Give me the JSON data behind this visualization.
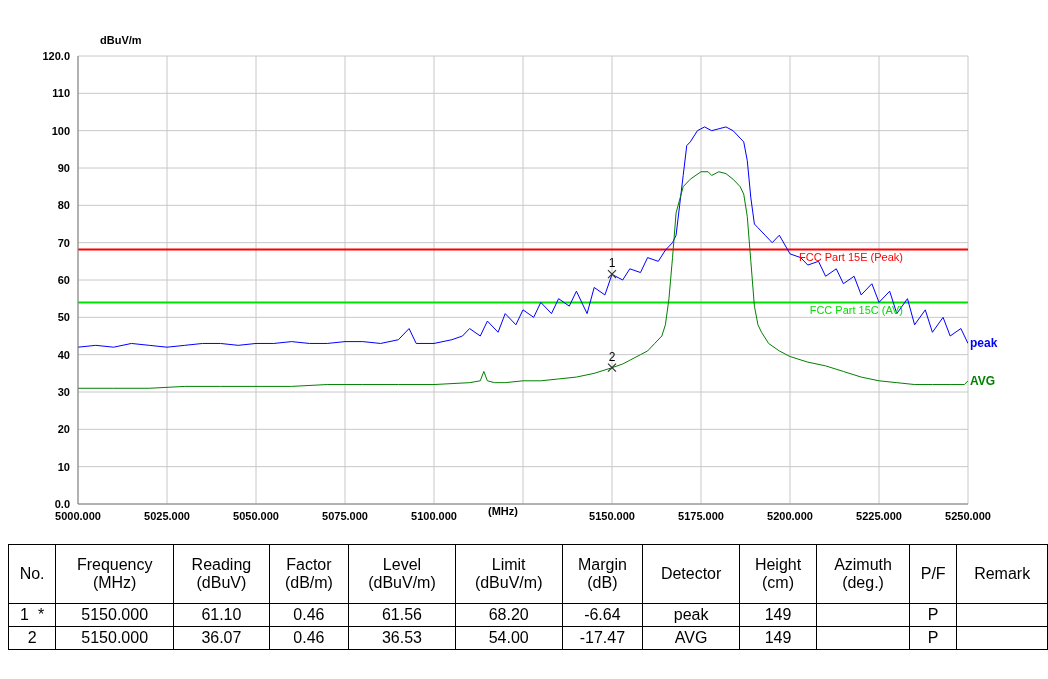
{
  "chart_data": [
    {
      "type": "line",
      "ylabel": "dBuV/m",
      "xlabel": "(MHz)",
      "xlim": [
        5000,
        5250
      ],
      "ylim": [
        0,
        120
      ],
      "xticks": [
        {
          "value": 5000,
          "label": "5000.000"
        },
        {
          "value": 5025,
          "label": "5025.000"
        },
        {
          "value": 5050,
          "label": "5050.000"
        },
        {
          "value": 5075,
          "label": "5075.000"
        },
        {
          "value": 5100,
          "label": "5100.000"
        },
        {
          "value": 5125,
          "label": null
        },
        {
          "value": 5150,
          "label": "5150.000"
        },
        {
          "value": 5175,
          "label": "5175.000"
        },
        {
          "value": 5200,
          "label": "5200.000"
        },
        {
          "value": 5225,
          "label": "5225.000"
        },
        {
          "value": 5250,
          "label": "5250.000"
        }
      ],
      "yticks": [
        {
          "value": 0,
          "label": "0.0"
        },
        10,
        20,
        30,
        40,
        50,
        60,
        70,
        80,
        90,
        100,
        110,
        {
          "value": 120,
          "label": "120.0"
        }
      ],
      "grid": true,
      "legend": false,
      "marker": "none",
      "line_style": "solid",
      "series": [
        {
          "name": "peak",
          "color": "#0000ff",
          "x": [
            5000,
            5005,
            5010,
            5015,
            5020,
            5025,
            5030,
            5035,
            5040,
            5045,
            5050,
            5055,
            5060,
            5065,
            5070,
            5075,
            5080,
            5085,
            5090,
            5093,
            5095,
            5100,
            5105,
            5108,
            5110,
            5113,
            5115,
            5118,
            5120,
            5123,
            5125,
            5128,
            5130,
            5133,
            5135,
            5138,
            5140,
            5143,
            5145,
            5148,
            5150,
            5153,
            5155,
            5158,
            5160,
            5163,
            5165,
            5167,
            5168,
            5169,
            5170,
            5171,
            5172,
            5174,
            5176,
            5178,
            5180,
            5182,
            5184,
            5186,
            5187,
            5188,
            5189,
            5190,
            5191,
            5193,
            5195,
            5197,
            5200,
            5203,
            5205,
            5208,
            5210,
            5213,
            5215,
            5218,
            5220,
            5223,
            5225,
            5228,
            5230,
            5233,
            5235,
            5238,
            5240,
            5243,
            5245,
            5248,
            5250
          ],
          "values": [
            42,
            42.5,
            42,
            43,
            42.5,
            42,
            42.5,
            43,
            43,
            42.5,
            43,
            43,
            43.5,
            43,
            43,
            43.5,
            43.5,
            43,
            44,
            47,
            43,
            43,
            44,
            45,
            47,
            45,
            49,
            46,
            51,
            48,
            52,
            50,
            54,
            51,
            55,
            53,
            57,
            51,
            58,
            56,
            61.5,
            60,
            63,
            62,
            66,
            65,
            68,
            70,
            72,
            80,
            88,
            96,
            97,
            100,
            101,
            100,
            100.5,
            101,
            100,
            98,
            97,
            92,
            82,
            75,
            74,
            72,
            70,
            72,
            67,
            66,
            64,
            65,
            61,
            63,
            59,
            61,
            56,
            59,
            54,
            57,
            51,
            55,
            48,
            52,
            46,
            50,
            45,
            47,
            43
          ]
        },
        {
          "name": "AVG",
          "color": "#008000",
          "x": [
            5000,
            5010,
            5020,
            5030,
            5040,
            5050,
            5060,
            5070,
            5080,
            5090,
            5100,
            5110,
            5113,
            5114,
            5115,
            5117,
            5120,
            5125,
            5130,
            5135,
            5140,
            5145,
            5150,
            5153,
            5155,
            5158,
            5160,
            5162,
            5164,
            5165,
            5166,
            5167,
            5168,
            5170,
            5172,
            5175,
            5177,
            5178,
            5180,
            5182,
            5184,
            5186,
            5187,
            5188,
            5189,
            5190,
            5191,
            5192,
            5194,
            5197,
            5200,
            5205,
            5210,
            5215,
            5220,
            5225,
            5230,
            5235,
            5240,
            5245,
            5249,
            5250
          ],
          "values": [
            31,
            31,
            31,
            31.5,
            31.5,
            31.5,
            31.5,
            32,
            32,
            32,
            32,
            32.5,
            33,
            35.5,
            33,
            32.5,
            32.5,
            33,
            33,
            33.5,
            34,
            35,
            36.5,
            37.5,
            38.5,
            40,
            41,
            43,
            45,
            48,
            55,
            66,
            78,
            85,
            87,
            89,
            89,
            88,
            89,
            88.5,
            87,
            85,
            83,
            77,
            65,
            53,
            48,
            46,
            43,
            41,
            39.5,
            38,
            37,
            35.5,
            34,
            33,
            32.5,
            32,
            32,
            32,
            32,
            33
          ]
        }
      ],
      "ref_lines": [
        {
          "axis": "y",
          "value": 68.2,
          "label": "FCC Part 15E  (Peak)",
          "color": "#ff0000"
        },
        {
          "axis": "y",
          "value": 54,
          "label": "FCC Part 15C (AV)",
          "color": "#00e000"
        }
      ],
      "annotations": [
        {
          "text": "1",
          "x": 5150,
          "y": 61.56
        },
        {
          "text": "2",
          "x": 5150,
          "y": 36.53
        }
      ]
    },
    {
      "type": "other",
      "categories": [
        "No.",
        "Frequency\n(MHz)",
        "Reading\n(dBuV)",
        "Factor\n(dB/m)",
        "Level\n(dBuV/m)",
        "Limit\n(dBuV/m)",
        "Margin\n(dB)",
        "Detector",
        "Height\n(cm)",
        "Azimuth\n(deg.)",
        "P/F",
        "Remark"
      ],
      "cell_labels": [
        [
          "1  *",
          "5150.000",
          "61.10",
          "0.46",
          "61.56",
          "68.20",
          "-6.64",
          "peak",
          "149",
          null,
          "P",
          null
        ],
        [
          "2",
          "5150.000",
          "36.07",
          "0.46",
          "36.53",
          "54.00",
          "-17.47",
          "AVG",
          "149",
          null,
          "P",
          null
        ]
      ]
    }
  ]
}
